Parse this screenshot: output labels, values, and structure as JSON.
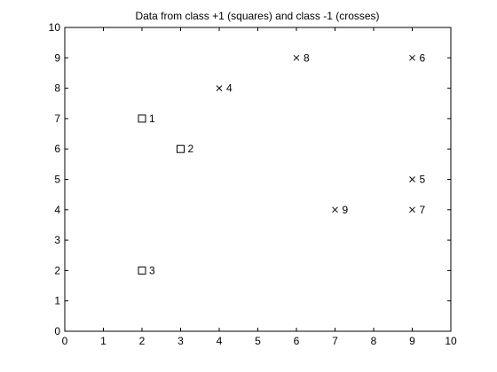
{
  "chart_data": {
    "type": "scatter",
    "title": "Data from class +1 (squares) and class -1 (crosses)",
    "xlabel": "",
    "ylabel": "",
    "xlim": [
      0,
      10
    ],
    "ylim": [
      0,
      10
    ],
    "xticks": [
      0,
      1,
      2,
      3,
      4,
      5,
      6,
      7,
      8,
      9,
      10
    ],
    "yticks": [
      0,
      1,
      2,
      3,
      4,
      5,
      6,
      7,
      8,
      9,
      10
    ],
    "grid": false,
    "series": [
      {
        "marker": "square",
        "points": [
          {
            "x": 2,
            "y": 7,
            "label": "1"
          },
          {
            "x": 3,
            "y": 6,
            "label": "2"
          },
          {
            "x": 2,
            "y": 2,
            "label": "3"
          }
        ]
      },
      {
        "marker": "cross",
        "points": [
          {
            "x": 4,
            "y": 8,
            "label": "4"
          },
          {
            "x": 9,
            "y": 5,
            "label": "5"
          },
          {
            "x": 9,
            "y": 9,
            "label": "6"
          },
          {
            "x": 9,
            "y": 4,
            "label": "7"
          },
          {
            "x": 6,
            "y": 9,
            "label": "8"
          },
          {
            "x": 7,
            "y": 4,
            "label": "9"
          }
        ]
      }
    ],
    "colors": {
      "axis": "#000000",
      "marker": "#000000",
      "background": "#ffffff"
    }
  }
}
